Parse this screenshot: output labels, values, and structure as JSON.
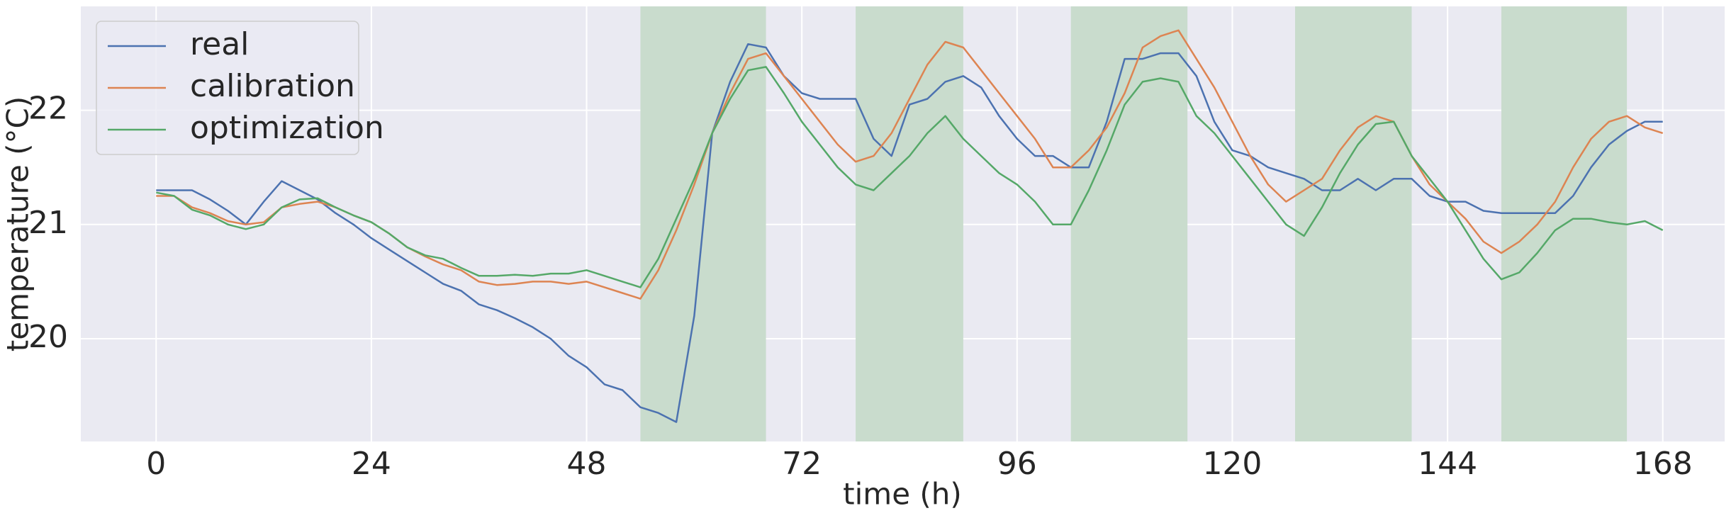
{
  "chart_data": {
    "type": "line",
    "xlabel": "time (h)",
    "ylabel": "temperature (°C)",
    "x": [
      0,
      2,
      4,
      6,
      8,
      10,
      12,
      14,
      16,
      18,
      20,
      22,
      24,
      26,
      28,
      30,
      32,
      34,
      36,
      38,
      40,
      42,
      44,
      46,
      48,
      50,
      52,
      54,
      56,
      58,
      60,
      62,
      64,
      66,
      68,
      70,
      72,
      74,
      76,
      78,
      80,
      82,
      84,
      86,
      88,
      90,
      92,
      94,
      96,
      98,
      100,
      102,
      104,
      106,
      108,
      110,
      112,
      114,
      116,
      118,
      120,
      122,
      124,
      126,
      128,
      130,
      132,
      134,
      136,
      138,
      140,
      142,
      144,
      146,
      148,
      150,
      152,
      154,
      156,
      158,
      160,
      162,
      164,
      166,
      168
    ],
    "series": [
      {
        "name": "real",
        "color": "#4c72b0",
        "values": [
          21.3,
          21.3,
          21.3,
          21.22,
          21.12,
          21.0,
          21.2,
          21.38,
          21.3,
          21.22,
          21.1,
          21.0,
          20.88,
          20.78,
          20.68,
          20.58,
          20.48,
          20.42,
          20.3,
          20.25,
          20.18,
          20.1,
          20.0,
          19.85,
          19.75,
          19.6,
          19.55,
          19.4,
          19.35,
          19.27,
          20.2,
          21.8,
          22.25,
          22.58,
          22.55,
          22.3,
          22.15,
          22.1,
          22.1,
          22.1,
          21.75,
          21.6,
          22.05,
          22.1,
          22.25,
          22.3,
          22.2,
          21.95,
          21.75,
          21.6,
          21.6,
          21.5,
          21.5,
          21.9,
          22.45,
          22.45,
          22.5,
          22.5,
          22.3,
          21.9,
          21.65,
          21.6,
          21.5,
          21.45,
          21.4,
          21.3,
          21.3,
          21.4,
          21.3,
          21.4,
          21.4,
          21.25,
          21.2,
          21.2,
          21.12,
          21.1,
          21.1,
          21.1,
          21.1,
          21.25,
          21.5,
          21.7,
          21.82,
          21.9,
          21.9
        ]
      },
      {
        "name": "calibration",
        "color": "#dd8452",
        "values": [
          21.25,
          21.25,
          21.15,
          21.1,
          21.03,
          21.0,
          21.02,
          21.15,
          21.18,
          21.2,
          21.15,
          21.08,
          21.02,
          20.92,
          20.8,
          20.72,
          20.65,
          20.6,
          20.5,
          20.47,
          20.48,
          20.5,
          20.5,
          20.48,
          20.5,
          20.45,
          20.4,
          20.35,
          20.6,
          20.95,
          21.35,
          21.8,
          22.15,
          22.45,
          22.5,
          22.3,
          22.1,
          21.9,
          21.7,
          21.55,
          21.6,
          21.8,
          22.1,
          22.4,
          22.6,
          22.55,
          22.35,
          22.15,
          21.95,
          21.75,
          21.5,
          21.5,
          21.65,
          21.85,
          22.15,
          22.55,
          22.65,
          22.7,
          22.45,
          22.2,
          21.9,
          21.6,
          21.35,
          21.2,
          21.3,
          21.4,
          21.65,
          21.85,
          21.95,
          21.9,
          21.6,
          21.35,
          21.2,
          21.05,
          20.85,
          20.75,
          20.85,
          21.0,
          21.2,
          21.5,
          21.75,
          21.9,
          21.95,
          21.85,
          21.8
        ]
      },
      {
        "name": "optimization",
        "color": "#55a868",
        "values": [
          21.28,
          21.25,
          21.13,
          21.08,
          21.0,
          20.96,
          21.0,
          21.15,
          21.22,
          21.23,
          21.15,
          21.08,
          21.02,
          20.92,
          20.8,
          20.73,
          20.7,
          20.62,
          20.55,
          20.55,
          20.56,
          20.55,
          20.57,
          20.57,
          20.6,
          20.55,
          20.5,
          20.45,
          20.7,
          21.05,
          21.4,
          21.8,
          22.1,
          22.35,
          22.38,
          22.15,
          21.9,
          21.7,
          21.5,
          21.35,
          21.3,
          21.45,
          21.6,
          21.8,
          21.95,
          21.75,
          21.6,
          21.45,
          21.35,
          21.2,
          21.0,
          21.0,
          21.3,
          21.65,
          22.05,
          22.25,
          22.28,
          22.25,
          21.95,
          21.8,
          21.6,
          21.4,
          21.2,
          21.0,
          20.9,
          21.15,
          21.45,
          21.7,
          21.88,
          21.9,
          21.6,
          21.4,
          21.2,
          20.95,
          20.7,
          20.52,
          20.58,
          20.75,
          20.95,
          21.05,
          21.05,
          21.02,
          21.0,
          21.03,
          20.95
        ]
      }
    ],
    "shaded_regions": [
      [
        54,
        68
      ],
      [
        78,
        90
      ],
      [
        102,
        115
      ],
      [
        127,
        140
      ],
      [
        150,
        164
      ]
    ],
    "shade_color": "#c9dccd",
    "xlim": [
      -8.4,
      174.9
    ],
    "ylim": [
      19.1,
      22.91
    ],
    "xticks": [
      0,
      24,
      48,
      72,
      96,
      120,
      144,
      168
    ],
    "yticks": [
      20,
      21,
      22
    ],
    "grid": true,
    "legend": "upper-left"
  }
}
